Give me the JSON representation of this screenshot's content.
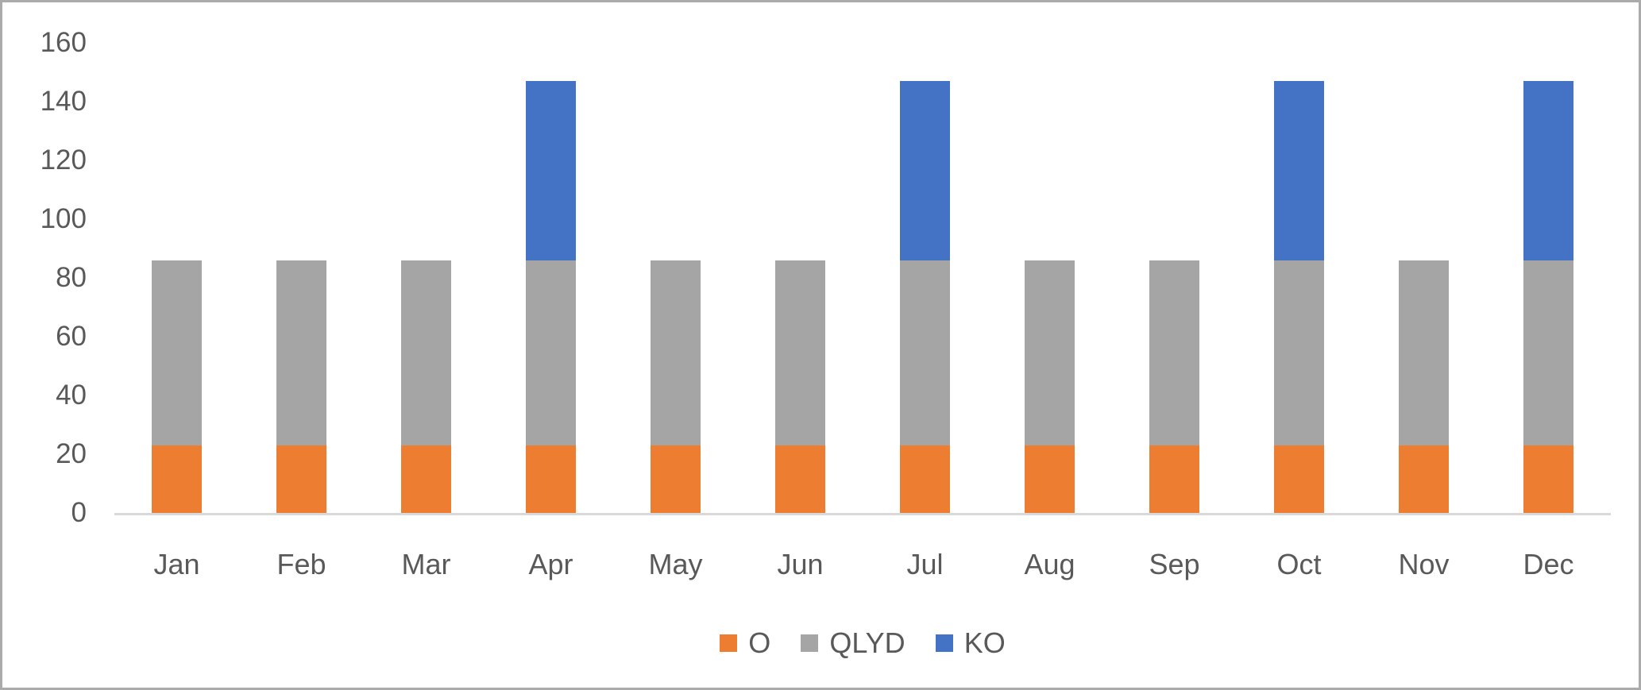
{
  "chart_data": {
    "type": "bar",
    "stacked": true,
    "title": "",
    "xlabel": "",
    "ylabel": "",
    "categories": [
      "Jan",
      "Feb",
      "Mar",
      "Apr",
      "May",
      "Jun",
      "Jul",
      "Aug",
      "Sep",
      "Oct",
      "Nov",
      "Dec"
    ],
    "series": [
      {
        "name": "O",
        "color": "#ED7D31",
        "values": [
          23,
          23,
          23,
          23,
          23,
          23,
          23,
          23,
          23,
          23,
          23,
          23
        ]
      },
      {
        "name": "QLYD",
        "color": "#A5A5A5",
        "values": [
          63,
          63,
          63,
          63,
          63,
          63,
          63,
          63,
          63,
          63,
          63,
          63
        ]
      },
      {
        "name": "KO",
        "color": "#4472C4",
        "values": [
          0,
          0,
          0,
          61,
          0,
          0,
          61,
          0,
          0,
          61,
          0,
          61
        ]
      }
    ],
    "ylim": [
      0,
      160
    ],
    "yticks": [
      0,
      20,
      40,
      60,
      80,
      100,
      120,
      140,
      160
    ],
    "grid": false,
    "legend_position": "bottom",
    "legend": [
      "O",
      "QLYD",
      "KO"
    ]
  },
  "colors": {
    "series_o": "#ED7D31",
    "series_qlyd": "#A5A5A5",
    "series_ko": "#4472C4",
    "axis_line": "#D9D9D9",
    "tick_text": "#595959",
    "figure_border": "#ABABAB",
    "background": "#FFFFFF"
  }
}
